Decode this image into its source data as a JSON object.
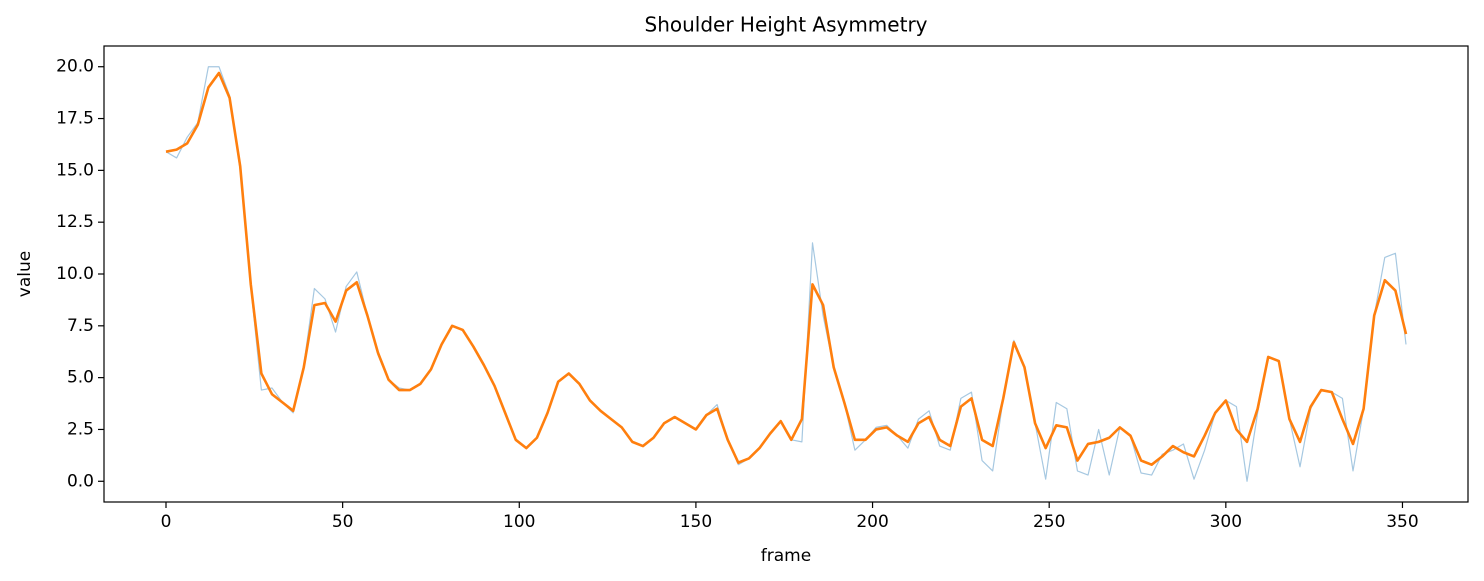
{
  "chart_data": {
    "type": "line",
    "title": "Shoulder Height Asymmetry",
    "x_label": "frame",
    "y_label": "value",
    "x": [
      0,
      3,
      6,
      9,
      12,
      15,
      18,
      21,
      24,
      27,
      30,
      33,
      36,
      39,
      42,
      45,
      48,
      51,
      54,
      57,
      60,
      63,
      66,
      69,
      72,
      75,
      78,
      81,
      84,
      87,
      90,
      93,
      96,
      99,
      102,
      105,
      108,
      111,
      114,
      117,
      120,
      123,
      126,
      129,
      132,
      135,
      138,
      141,
      144,
      147,
      150,
      153,
      156,
      159,
      162,
      165,
      168,
      171,
      174,
      177,
      180,
      183,
      186,
      189,
      192,
      195,
      198,
      201,
      204,
      207,
      210,
      213,
      216,
      219,
      222,
      225,
      228,
      231,
      234,
      237,
      240,
      243,
      246,
      249,
      252,
      255,
      258,
      261,
      264,
      267,
      270,
      273,
      276,
      279,
      282,
      285,
      288,
      291,
      294,
      297,
      300,
      303,
      306,
      309,
      312,
      315,
      318,
      321,
      324,
      327,
      330,
      333,
      336,
      339,
      342,
      345,
      348,
      351
    ],
    "series": [
      {
        "color": "#a6c8e1",
        "width": 1.2,
        "values": [
          15.9,
          15.6,
          16.6,
          17.3,
          20.0,
          20.0,
          18.6,
          15.0,
          9.4,
          4.4,
          4.5,
          3.8,
          3.3,
          5.6,
          9.3,
          8.8,
          7.2,
          9.4,
          10.1,
          8.0,
          6.1,
          4.9,
          4.5,
          4.4,
          4.7,
          5.4,
          6.6,
          7.5,
          7.3,
          6.5,
          5.6,
          4.6,
          3.3,
          2.0,
          1.6,
          2.1,
          3.3,
          4.8,
          5.2,
          4.7,
          3.9,
          3.4,
          3.0,
          2.6,
          1.9,
          1.7,
          2.1,
          2.8,
          3.1,
          2.8,
          2.5,
          3.2,
          3.7,
          2.0,
          0.8,
          1.1,
          1.6,
          2.3,
          2.9,
          2.0,
          1.9,
          11.5,
          8.0,
          5.5,
          3.8,
          1.5,
          2.0,
          2.6,
          2.7,
          2.2,
          1.6,
          3.0,
          3.4,
          1.7,
          1.5,
          4.0,
          4.3,
          1.0,
          0.5,
          4.0,
          6.8,
          5.5,
          2.8,
          0.1,
          3.8,
          3.5,
          0.5,
          0.3,
          2.5,
          0.3,
          2.6,
          2.2,
          0.4,
          0.3,
          1.3,
          1.5,
          1.8,
          0.1,
          1.5,
          3.3,
          3.9,
          3.6,
          0.0,
          3.3,
          6.0,
          5.8,
          3.0,
          0.7,
          3.5,
          4.4,
          4.3,
          4.0,
          0.5,
          3.5,
          8.0,
          10.8,
          11.0,
          6.6
        ]
      },
      {
        "color": "#ff7f0e",
        "width": 2.6,
        "values": [
          15.9,
          16.0,
          16.3,
          17.2,
          19.0,
          19.7,
          18.5,
          15.2,
          9.5,
          5.2,
          4.2,
          3.8,
          3.4,
          5.5,
          8.5,
          8.6,
          7.7,
          9.2,
          9.6,
          8.0,
          6.2,
          4.9,
          4.4,
          4.4,
          4.7,
          5.4,
          6.6,
          7.5,
          7.3,
          6.5,
          5.6,
          4.6,
          3.3,
          2.0,
          1.6,
          2.1,
          3.3,
          4.8,
          5.2,
          4.7,
          3.9,
          3.4,
          3.0,
          2.6,
          1.9,
          1.7,
          2.1,
          2.8,
          3.1,
          2.8,
          2.5,
          3.2,
          3.5,
          2.0,
          0.9,
          1.1,
          1.6,
          2.3,
          2.9,
          2.0,
          3.0,
          9.5,
          8.5,
          5.5,
          3.8,
          2.0,
          2.0,
          2.5,
          2.6,
          2.2,
          1.9,
          2.8,
          3.1,
          2.0,
          1.7,
          3.6,
          4.0,
          2.0,
          1.7,
          4.0,
          6.7,
          5.5,
          2.8,
          1.6,
          2.7,
          2.6,
          1.0,
          1.8,
          1.9,
          2.1,
          2.6,
          2.2,
          1.0,
          0.8,
          1.2,
          1.7,
          1.4,
          1.2,
          2.2,
          3.3,
          3.9,
          2.5,
          1.9,
          3.5,
          6.0,
          5.8,
          3.0,
          1.9,
          3.6,
          4.4,
          4.3,
          3.0,
          1.8,
          3.5,
          8.0,
          9.7,
          9.2,
          7.1
        ]
      }
    ],
    "xlim": [
      -17.55,
      368.55
    ],
    "xticks": [
      0,
      50,
      100,
      150,
      200,
      250,
      300,
      350
    ],
    "ylim": [
      -1,
      21
    ],
    "yticks": [
      {
        "value": 0,
        "label": "0.0"
      },
      {
        "value": 2.5,
        "label": "2.5"
      },
      {
        "value": 5,
        "label": "5.0"
      },
      {
        "value": 7.5,
        "label": "7.5"
      },
      {
        "value": 10,
        "label": "10.0"
      },
      {
        "value": 12.5,
        "label": "12.5"
      },
      {
        "value": 15,
        "label": "15.0"
      },
      {
        "value": 17.5,
        "label": "17.5"
      },
      {
        "value": 20,
        "label": "20.0"
      }
    ],
    "grid": false
  }
}
